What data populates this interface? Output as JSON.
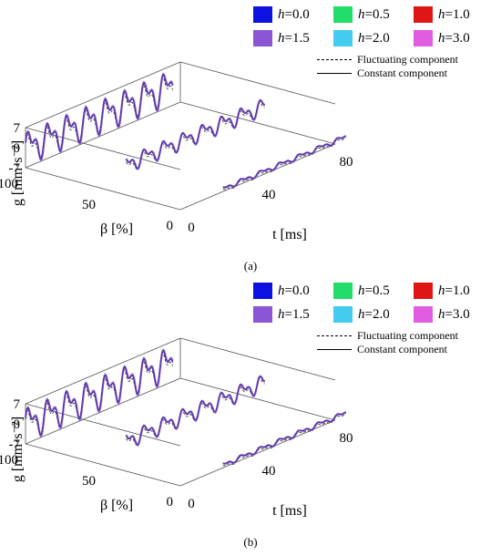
{
  "legend": {
    "h_items": [
      {
        "label": "h=0.0",
        "color": "#0d12e0"
      },
      {
        "label": "h=0.5",
        "color": "#22dd6a"
      },
      {
        "label": "h=1.0",
        "color": "#e01616"
      },
      {
        "label": "h=1.5",
        "color": "#8c55d6"
      },
      {
        "label": "h=2.0",
        "color": "#44ccf0"
      },
      {
        "label": "h=3.0",
        "color": "#e25ce2"
      }
    ],
    "fluctuating": "Fluctuating component",
    "constant": "Constant component"
  },
  "axes": {
    "ylabel": "g [mm·s⁻²]",
    "xlabel": "t [ms]",
    "zlabel": "β [%]",
    "g_ticks": [
      "7",
      "0",
      "-7"
    ],
    "beta_ticks": [
      "100",
      "50",
      "0"
    ],
    "t_ticks": [
      "0",
      "40",
      "80"
    ]
  },
  "panels": [
    {
      "caption": "(a)"
    },
    {
      "caption": "(b)"
    }
  ],
  "chart_data": [
    {
      "type": "line",
      "panel": "(a)",
      "x_label": "t [ms]",
      "x_range": [
        0,
        80
      ],
      "z_label": "β [%]",
      "z_values": [
        100,
        50,
        0
      ],
      "y_label": "g [mm·s⁻²]",
      "y_range": [
        -7,
        7
      ],
      "series": [
        {
          "beta": 100,
          "amplitude": 7.0,
          "offset": 0.0
        },
        {
          "beta": 50,
          "amplitude": 3.5,
          "offset": -2.0
        },
        {
          "beta": 0,
          "amplitude": 1.0,
          "offset": -6.0
        }
      ]
    },
    {
      "type": "line",
      "panel": "(b)",
      "x_label": "t [ms]",
      "x_range": [
        0,
        80
      ],
      "z_label": "β [%]",
      "z_values": [
        100,
        50,
        0
      ],
      "y_label": "g [mm·s⁻²]",
      "y_range": [
        -7,
        7
      ],
      "series": [
        {
          "beta": 100,
          "amplitude": 7.0,
          "offset": 0.0
        },
        {
          "beta": 50,
          "amplitude": 3.5,
          "offset": -2.0
        },
        {
          "beta": 0,
          "amplitude": 1.0,
          "offset": -6.0
        }
      ]
    }
  ]
}
